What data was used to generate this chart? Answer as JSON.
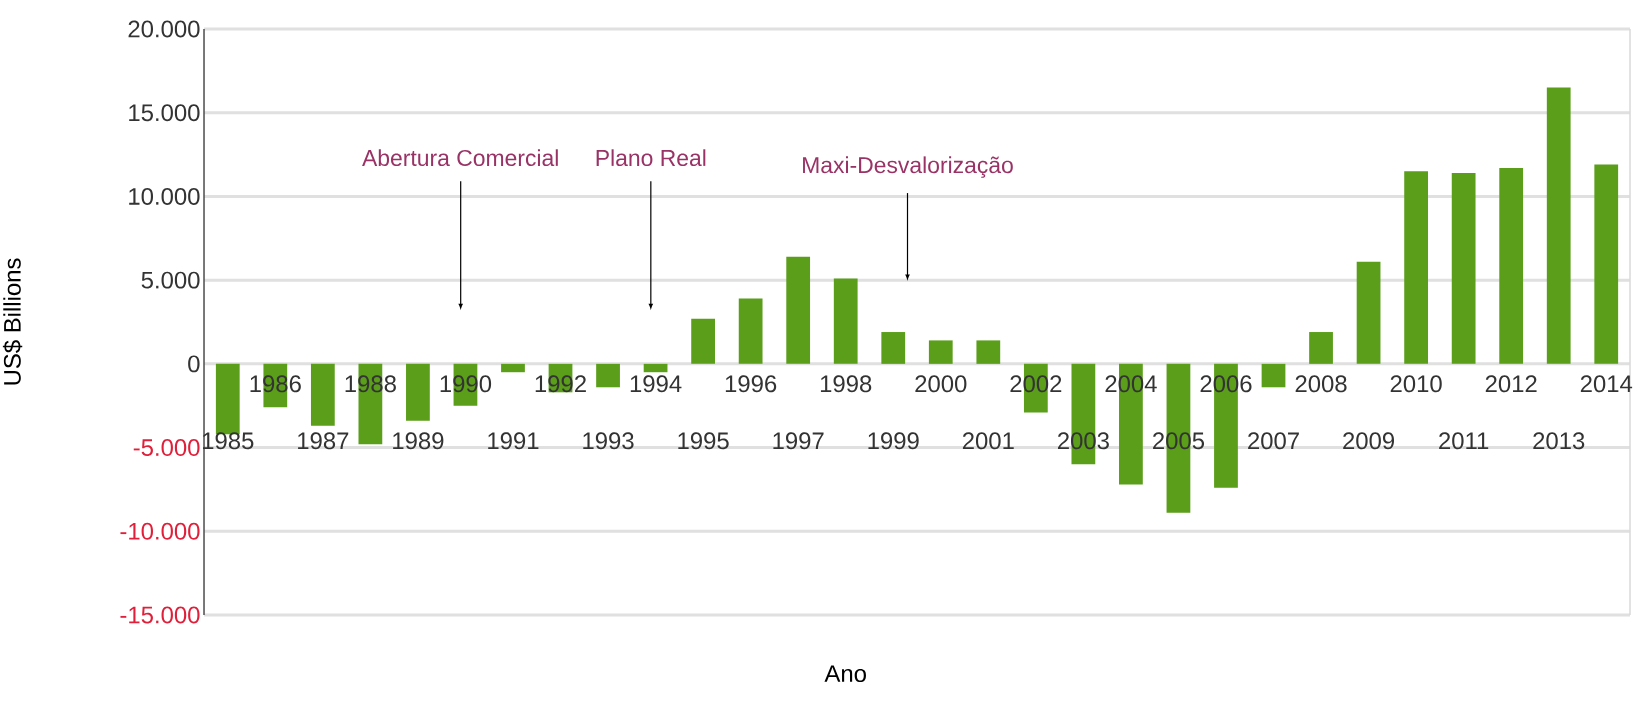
{
  "chart_data": {
    "type": "bar",
    "xlabel": "Ano",
    "ylabel": "US$ Billions",
    "categories": [
      "1985",
      "1986",
      "1987",
      "1988",
      "1989",
      "1990",
      "1991",
      "1992",
      "1993",
      "1994",
      "1995",
      "1996",
      "1997",
      "1998",
      "1999",
      "2000",
      "2001",
      "2002",
      "2003",
      "2004",
      "2005",
      "2006",
      "2007",
      "2008",
      "2009",
      "2010",
      "2011",
      "2012",
      "2013",
      "2014"
    ],
    "values": [
      -4200,
      -2600,
      -3700,
      -4800,
      -3400,
      -2500,
      -500,
      -1700,
      -1400,
      -500,
      2700,
      3900,
      6400,
      5100,
      1900,
      1400,
      1400,
      -2900,
      -6000,
      -7200,
      -8900,
      -7400,
      -1400,
      1900,
      6100,
      11500,
      11400,
      11700,
      16500,
      11900
    ],
    "color": "#5a9e1a",
    "ylim": [
      -15000,
      20000
    ],
    "yticks": [
      {
        "value": -15000,
        "label": "-15.000"
      },
      {
        "value": -10000,
        "label": "-10.000"
      },
      {
        "value": -5000,
        "label": "-5.000"
      },
      {
        "value": 0,
        "label": "0"
      },
      {
        "value": 5000,
        "label": "5.000"
      },
      {
        "value": 10000,
        "label": "10.000"
      },
      {
        "value": 15000,
        "label": "15.000"
      },
      {
        "value": 20000,
        "label": "20.000"
      }
    ],
    "grid": "y",
    "annotations": [
      "Abertura Comercial",
      "Plano Real",
      "Maxi-Desvalorização"
    ]
  }
}
